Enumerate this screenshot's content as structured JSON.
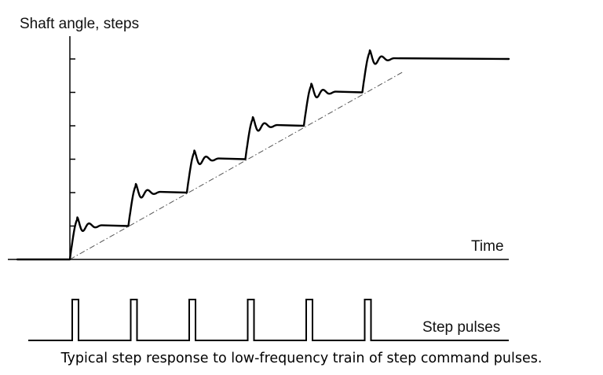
{
  "labels": {
    "y_axis": "Shaft angle, steps",
    "x_axis": "Time",
    "pulses": "Step pulses"
  },
  "caption": "Typical step response to low-frequency train of step command pulses.",
  "chart_data": {
    "type": "line",
    "ylabel": "Shaft angle, steps",
    "xlabel": "Time",
    "steps": 6,
    "series": [
      {
        "name": "",
        "description": "shaft angle staircase with damped oscillation at each step"
      },
      {
        "name": "",
        "description": "ideal ramp (dash-dot)"
      },
      {
        "name": "Step pulses",
        "pulse_count": 6
      }
    ]
  },
  "colors": {
    "line": "#000000",
    "axis": "#000000",
    "ramp": "#555555"
  }
}
